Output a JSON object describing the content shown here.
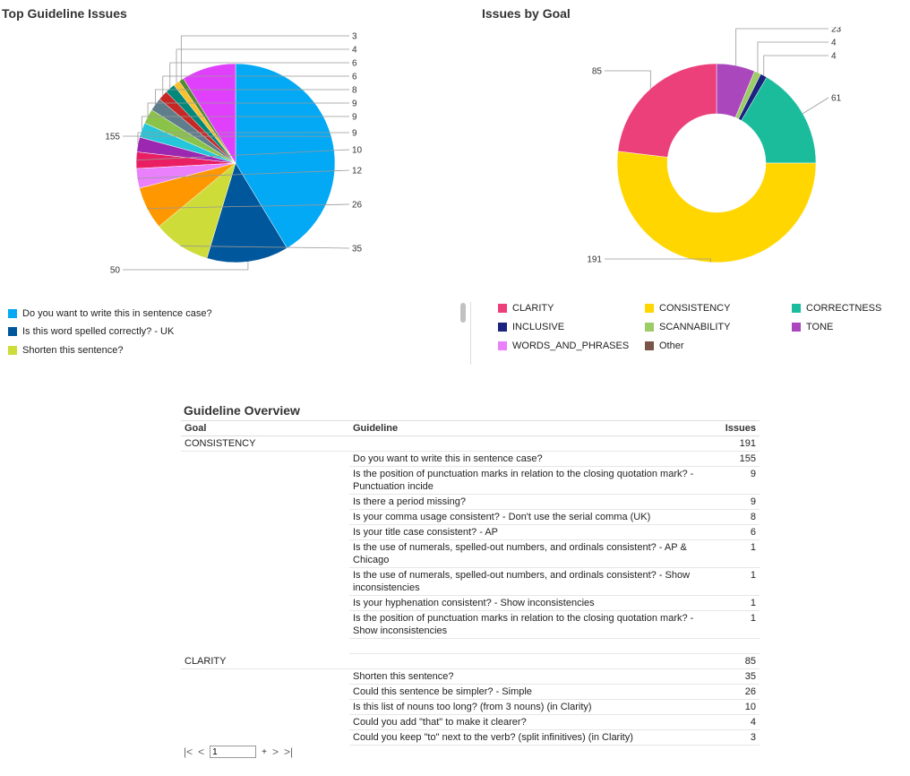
{
  "left_chart": {
    "title": "Top Guideline Issues",
    "legend": [
      {
        "label": "Do you want to write this in sentence case?",
        "color": "#03a9f4"
      },
      {
        "label": "Is this word spelled correctly? - UK",
        "color": "#01579b"
      },
      {
        "label": "Shorten this sentence?",
        "color": "#cddc39"
      }
    ]
  },
  "right_chart": {
    "title": "Issues by Goal",
    "legend": [
      {
        "label": "CLARITY",
        "color": "#ec407a"
      },
      {
        "label": "CONSISTENCY",
        "color": "#ffd600"
      },
      {
        "label": "CORRECTNESS",
        "color": "#1abc9c"
      },
      {
        "label": "INCLUSIVE",
        "color": "#1a237e"
      },
      {
        "label": "SCANNABILITY",
        "color": "#9ccc65"
      },
      {
        "label": "TONE",
        "color": "#ab47bc"
      },
      {
        "label": "WORDS_AND_PHRASES",
        "color": "#ea80fc"
      },
      {
        "label": "Other",
        "color": "#795548"
      }
    ]
  },
  "chart_data": [
    {
      "type": "pie",
      "title": "Top Guideline Issues",
      "slices": [
        {
          "value": 155,
          "color": "#03a9f4",
          "label": "155"
        },
        {
          "value": 50,
          "color": "#01579b",
          "label": "50"
        },
        {
          "value": 35,
          "color": "#cddc39",
          "label": "35"
        },
        {
          "value": 26,
          "color": "#ff9800",
          "label": "26"
        },
        {
          "value": 12,
          "color": "#ea80fc",
          "label": "12"
        },
        {
          "value": 10,
          "color": "#e91e63",
          "label": "10"
        },
        {
          "value": 9,
          "color": "#9c27b0",
          "label": "9"
        },
        {
          "value": 9,
          "color": "#26c6da",
          "label": "9"
        },
        {
          "value": 9,
          "color": "#8bc34a",
          "label": "9"
        },
        {
          "value": 8,
          "color": "#607d8b",
          "label": "8"
        },
        {
          "value": 6,
          "color": "#c62828",
          "label": "6"
        },
        {
          "value": 6,
          "color": "#00897b",
          "label": "6"
        },
        {
          "value": 4,
          "color": "#fbc02d",
          "label": "4"
        },
        {
          "value": 3,
          "color": "#558b2f",
          "label": "3"
        },
        {
          "value": 33,
          "color": "#e040fb",
          "label": ""
        }
      ]
    },
    {
      "type": "pie",
      "title": "Issues by Goal",
      "donut": true,
      "slices": [
        {
          "name": "TONE",
          "value": 23,
          "color": "#ab47bc",
          "label": "23"
        },
        {
          "name": "SCANNABILITY",
          "value": 4,
          "color": "#9ccc65",
          "label": "4"
        },
        {
          "name": "INCLUSIVE",
          "value": 4,
          "color": "#1a237e",
          "label": "4"
        },
        {
          "name": "CORRECTNESS",
          "value": 61,
          "color": "#1abc9c",
          "label": "61"
        },
        {
          "name": "CONSISTENCY",
          "value": 191,
          "color": "#ffd600",
          "label": "191"
        },
        {
          "name": "CLARITY",
          "value": 85,
          "color": "#ec407a",
          "label": "85"
        }
      ]
    }
  ],
  "table": {
    "title": "Guideline Overview",
    "headers": {
      "goal": "Goal",
      "guideline": "Guideline",
      "issues": "Issues"
    },
    "rows": [
      {
        "goal": "CONSISTENCY",
        "guideline": "",
        "issues": "191"
      },
      {
        "goal": "",
        "guideline": "Do you want to write this in sentence case?",
        "issues": "155"
      },
      {
        "goal": "",
        "guideline": "Is the position of punctuation marks in relation to the closing quotation mark? - Punctuation incide",
        "issues": "9"
      },
      {
        "goal": "",
        "guideline": "Is there a period missing?",
        "issues": "9"
      },
      {
        "goal": "",
        "guideline": "Is your comma usage consistent? - Don't use the serial comma (UK)",
        "issues": "8"
      },
      {
        "goal": "",
        "guideline": "Is your title case consistent? - AP",
        "issues": "6"
      },
      {
        "goal": "",
        "guideline": "Is the use of numerals, spelled-out numbers, and ordinals consistent? - AP & Chicago",
        "issues": "1"
      },
      {
        "goal": "",
        "guideline": "Is the use of numerals, spelled-out numbers, and ordinals consistent? - Show inconsistencies",
        "issues": "1"
      },
      {
        "goal": "",
        "guideline": "Is your hyphenation consistent? - Show inconsistencies",
        "issues": "1"
      },
      {
        "goal": "",
        "guideline": "Is the position of punctuation marks in relation to the closing quotation mark? - Show inconsistencies",
        "issues": "1"
      },
      {
        "goal": "",
        "guideline": "",
        "issues": ""
      },
      {
        "goal": "CLARITY",
        "guideline": "",
        "issues": "85"
      },
      {
        "goal": "",
        "guideline": "Shorten this sentence?",
        "issues": "35"
      },
      {
        "goal": "",
        "guideline": "Could this sentence be simpler? - Simple",
        "issues": "26"
      },
      {
        "goal": "",
        "guideline": "Is this list of nouns too long? (from 3 nouns) (in Clarity)",
        "issues": "10"
      },
      {
        "goal": "",
        "guideline": "Could you add \"that\" to make it clearer?",
        "issues": "4"
      },
      {
        "goal": "",
        "guideline": "Could you keep \"to\" next to the verb? (split infinitives) (in Clarity)",
        "issues": "3"
      }
    ]
  },
  "pager": {
    "page_value": "1",
    "plus": "+",
    "first_icon": "first-page-icon",
    "prev_icon": "prev-page-icon",
    "next_icon": "next-page-icon",
    "last_icon": "last-page-icon"
  }
}
